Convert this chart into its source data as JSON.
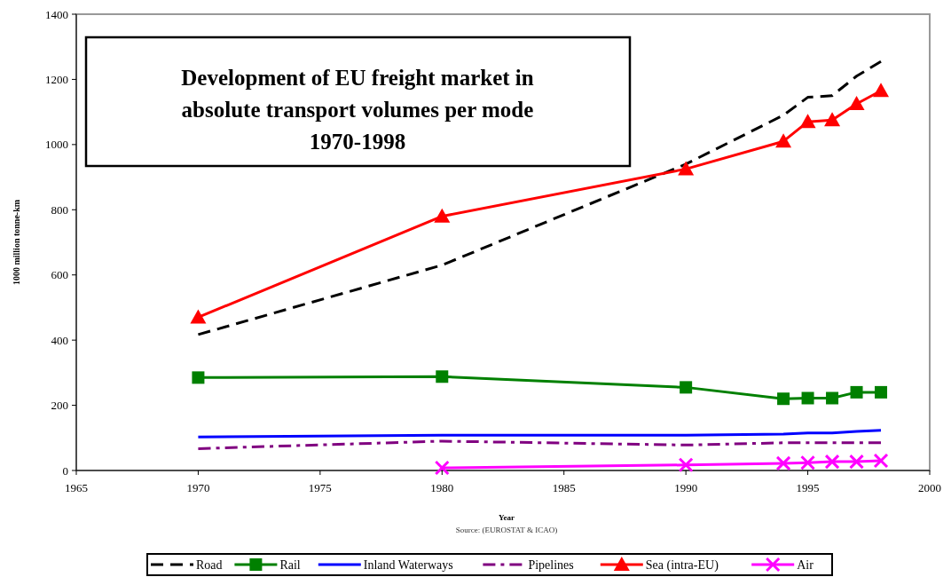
{
  "chart_data": {
    "type": "line",
    "title": "Development of EU freight market in absolute transport volumes per mode 1970-1998",
    "xlabel": "Year",
    "ylabel": "1000 million tonne-km",
    "annotations": [
      "Source: (EUROSTAT & ICAO)"
    ],
    "x": [
      1970,
      1980,
      1990,
      1994,
      1995,
      1996,
      1997,
      1998
    ],
    "series": [
      {
        "name": "Road",
        "color": "#000000",
        "line_style": "dashed",
        "marker": "none",
        "values": [
          417,
          630,
          940,
          1090,
          1145,
          1150,
          1210,
          1255
        ]
      },
      {
        "name": "Rail",
        "color": "#008000",
        "line_style": "solid",
        "marker": "square",
        "values": [
          285,
          288,
          255,
          220,
          222,
          222,
          240,
          240
        ]
      },
      {
        "name": "Inland Waterways",
        "color": "#0000ff",
        "line_style": "solid",
        "marker": "none",
        "values": [
          103,
          108,
          108,
          112,
          115,
          115,
          120,
          123
        ]
      },
      {
        "name": "Pipelines",
        "color": "#800080",
        "line_style": "dashdot",
        "marker": "none",
        "values": [
          67,
          90,
          78,
          85,
          85,
          85,
          85,
          85
        ]
      },
      {
        "name": "Sea (intra-EU)",
        "color": "#ff0000",
        "line_style": "solid",
        "marker": "triangle",
        "values": [
          470,
          780,
          925,
          1010,
          1070,
          1075,
          1125,
          1165
        ]
      },
      {
        "name": "Air",
        "color": "#ff00ff",
        "line_style": "solid",
        "marker": "cross",
        "values": [
          null,
          8,
          17,
          22,
          24,
          27,
          27,
          30
        ]
      }
    ],
    "xlim": [
      1965,
      2000
    ],
    "xticks": [
      1965,
      1970,
      1975,
      1980,
      1985,
      1990,
      1995,
      2000
    ],
    "ylim": [
      0,
      1400
    ],
    "yticks": [
      0,
      200,
      400,
      600,
      800,
      1000,
      1200,
      1400
    ],
    "grid": false,
    "legend": "bottom"
  }
}
